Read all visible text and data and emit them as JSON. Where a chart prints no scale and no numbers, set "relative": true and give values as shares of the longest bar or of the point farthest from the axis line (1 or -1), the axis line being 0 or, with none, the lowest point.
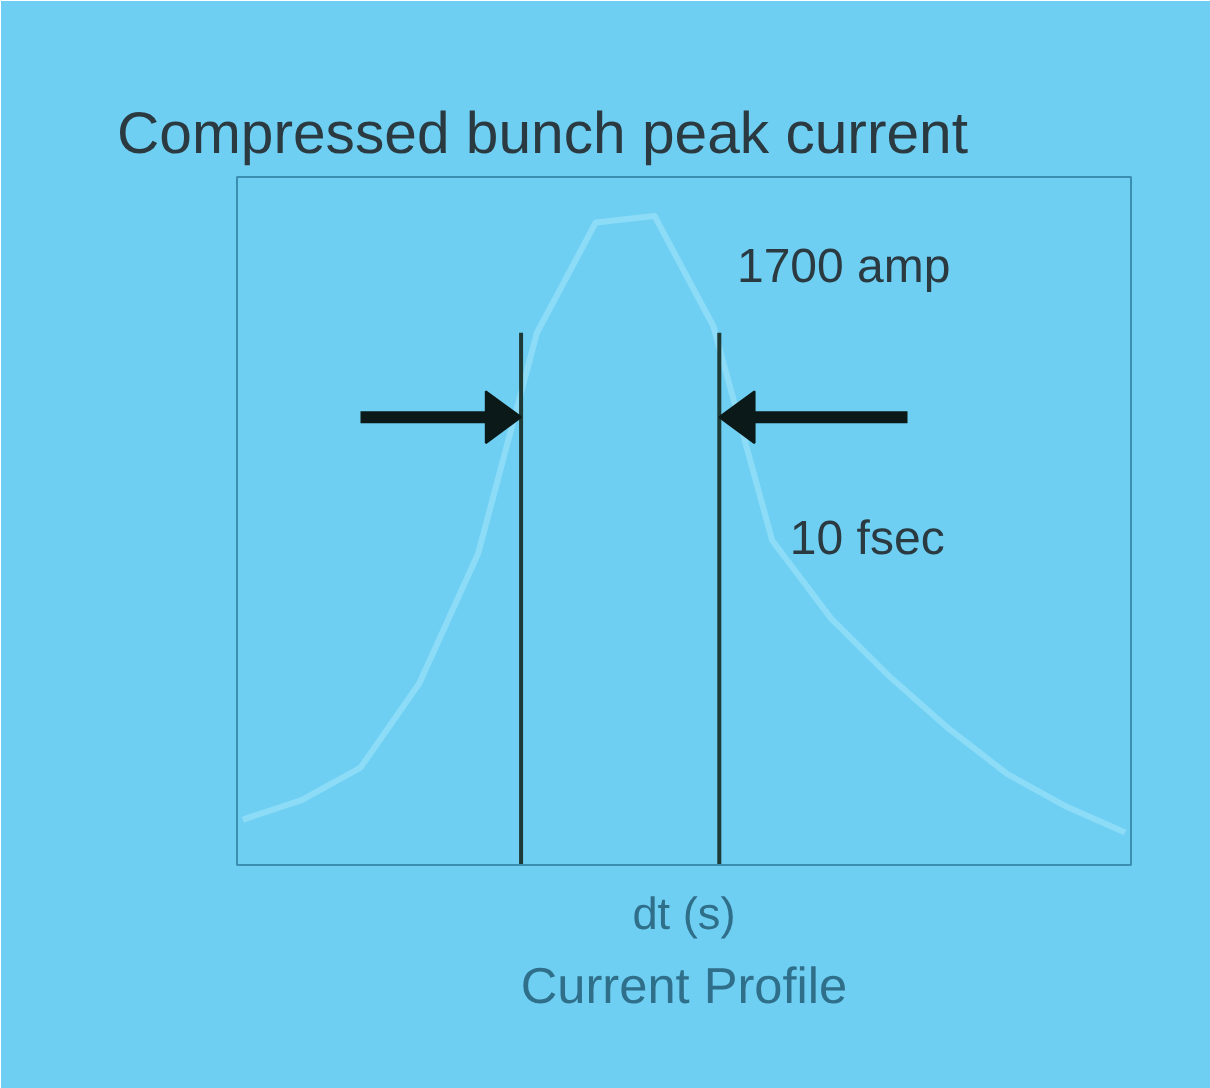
{
  "chart_data": {
    "type": "line",
    "title": "Compressed bunch peak current",
    "xlabel": "dt (s)",
    "relative": true,
    "categories": [
      null,
      null,
      null,
      null,
      null,
      null,
      null,
      null,
      null,
      null,
      null,
      null,
      null,
      null,
      null,
      null
    ],
    "series": [
      {
        "color": "#8cdcf7",
        "values": [
          0.07,
          0.1,
          0.15,
          0.28,
          0.48,
          0.82,
          0.99,
          1.0,
          0.83,
          0.5,
          0.38,
          0.29,
          0.21,
          0.14,
          0.09,
          0.05
        ]
      }
    ],
    "annotations": [
      "1700 amp",
      "10 fsec",
      "Current Profile"
    ],
    "grid": false
  }
}
